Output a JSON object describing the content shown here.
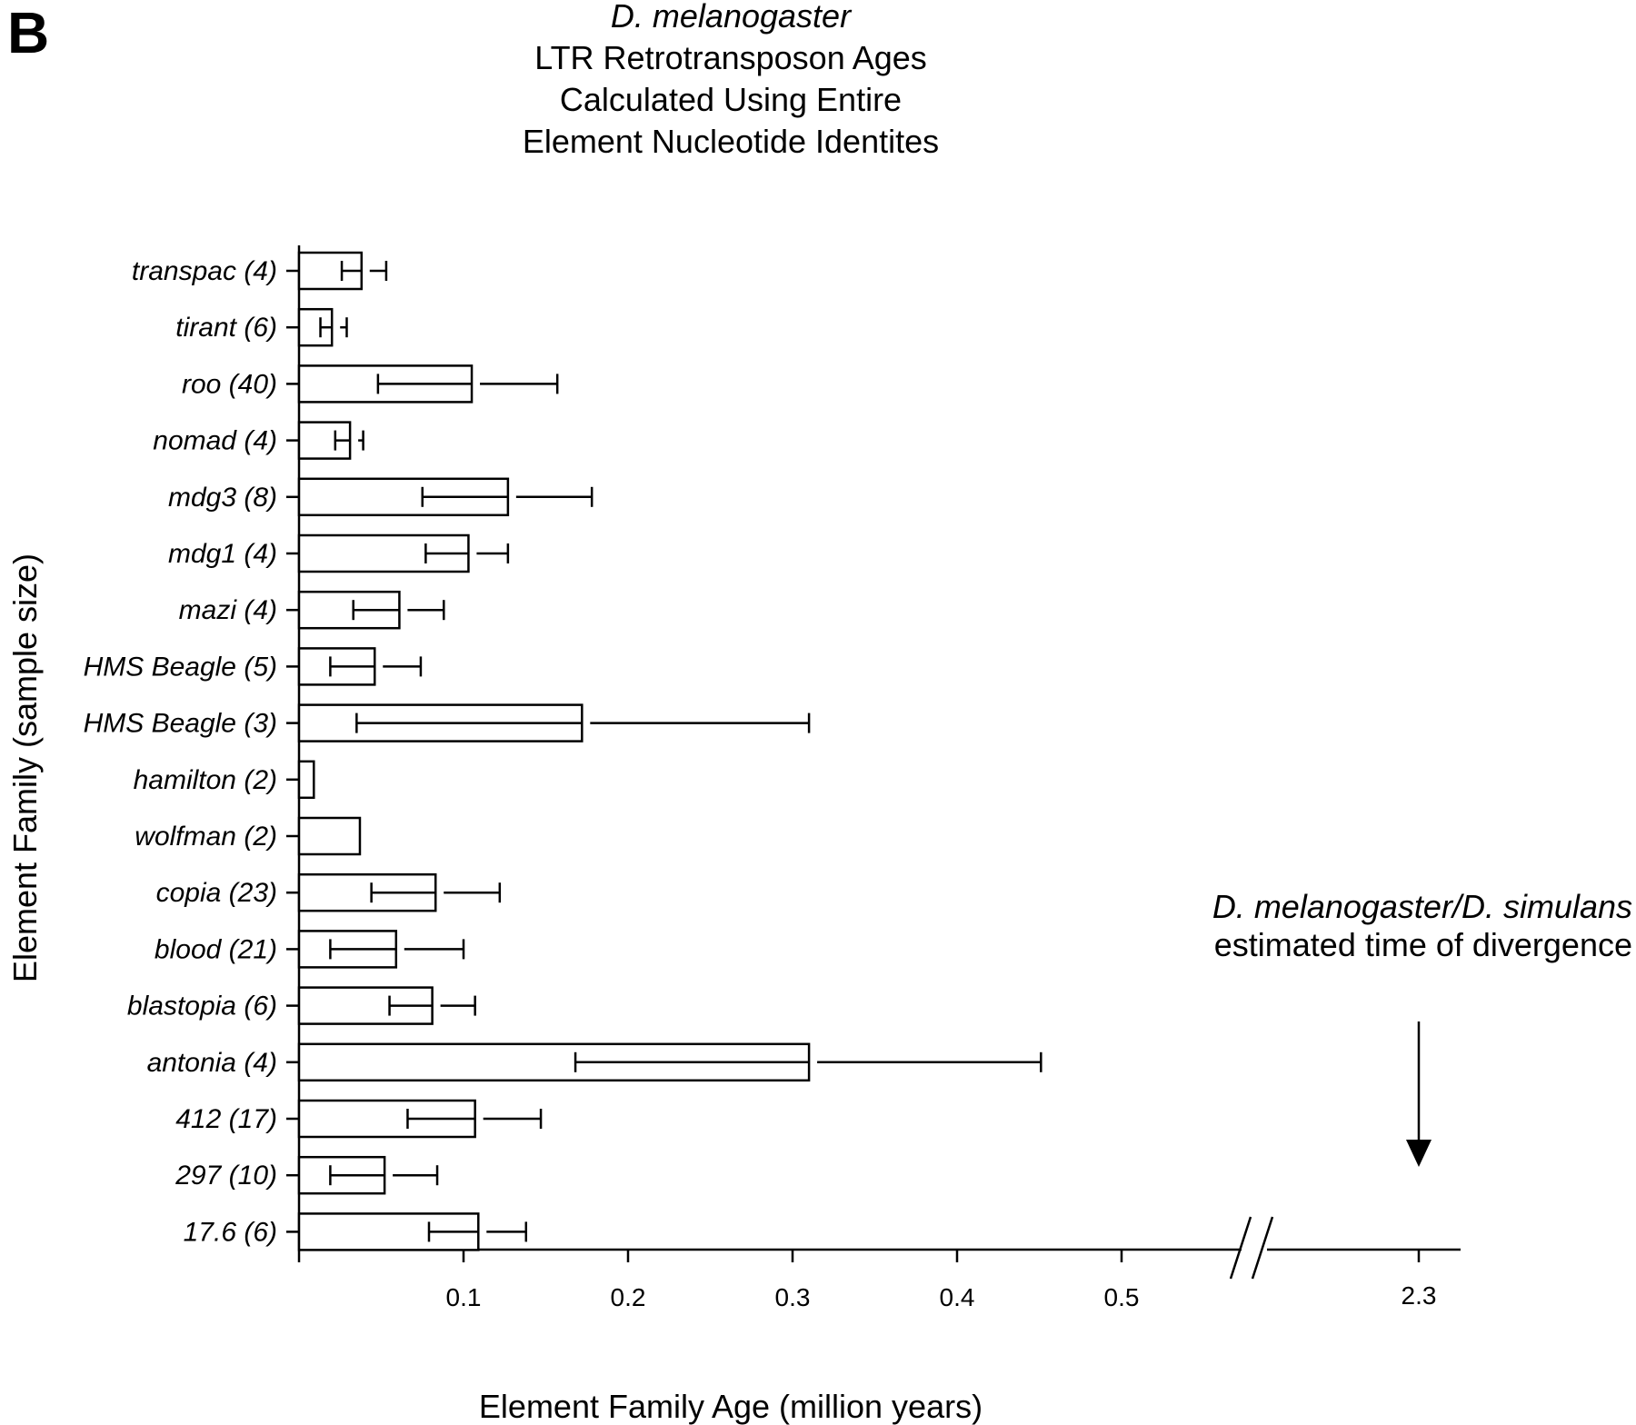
{
  "panel_label": "B",
  "chart_data": {
    "type": "bar",
    "orientation": "horizontal",
    "title_lines": [
      "D. melanogaster",
      "LTR Retrotransposon Ages",
      "Calculated Using Entire",
      "Element  Nucleotide Identites"
    ],
    "xlabel": "Element Family Age (million years)",
    "ylabel": "Element Family (sample size)",
    "categories": [
      "transpac (4)",
      "tirant (6)",
      "roo (40)",
      "nomad (4)",
      "mdg3 (8)",
      "mdg1 (4)",
      "mazi (4)",
      "HMS Beagle (5)",
      "HMS Beagle (3)",
      "hamilton (2)",
      "wolfman (2)",
      "copia (23)",
      "blood (21)",
      "blastopia (6)",
      "antonia (4)",
      "412 (17)",
      "297 (10)",
      "17.6 (6)"
    ],
    "values": [
      0.038,
      0.02,
      0.105,
      0.031,
      0.127,
      0.103,
      0.061,
      0.046,
      0.172,
      0.009,
      0.037,
      0.083,
      0.059,
      0.081,
      0.31,
      0.107,
      0.052,
      0.109
    ],
    "error_low": [
      0.026,
      0.013,
      0.048,
      0.022,
      0.075,
      0.077,
      0.033,
      0.019,
      0.035,
      null,
      null,
      0.044,
      0.019,
      0.055,
      0.168,
      0.066,
      0.019,
      0.079
    ],
    "error_high": [
      0.053,
      0.029,
      0.157,
      0.039,
      0.178,
      0.127,
      0.088,
      0.074,
      0.31,
      null,
      null,
      0.122,
      0.1,
      0.107,
      0.451,
      0.147,
      0.084,
      0.138
    ],
    "x_ticks": [
      0.1,
      0.2,
      0.3,
      0.4,
      0.5
    ],
    "x_tick_labels": [
      "0.1",
      "0.2",
      "0.3",
      "0.4",
      "0.5"
    ],
    "xlim": [
      0,
      0.5
    ],
    "axis_break": true,
    "break_tick_value": 2.3,
    "break_tick_label": "2.3",
    "annotation": {
      "line1": "D. melanogaster/D. simulans",
      "line2": "estimated time of divergence",
      "arrow_target_value": 2.3
    },
    "grid": false,
    "legend": "none"
  }
}
